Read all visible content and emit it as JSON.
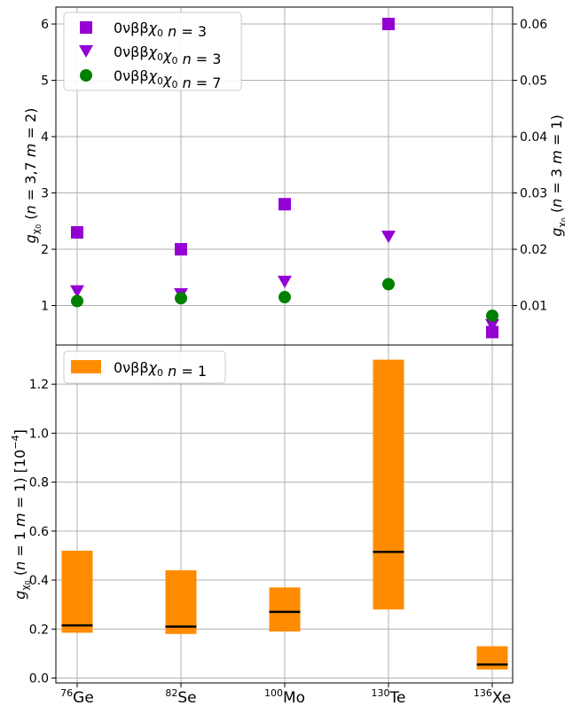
{
  "chart_data": [
    {
      "type": "scatter",
      "categories": [
        "76Ge",
        "82Se",
        "100Mo",
        "130Te",
        "136Xe"
      ],
      "ylabel": "g_χ0 (n = 3,7 m = 2)",
      "y2label": "g_χ0 (n = 3 m = 1)",
      "ylim": [
        0.3,
        6.3
      ],
      "y2lim": [
        0.003,
        0.063
      ],
      "yticks": [
        "1",
        "2",
        "3",
        "4",
        "5",
        "6"
      ],
      "y2ticks": [
        "0.01",
        "0.02",
        "0.03",
        "0.04",
        "0.05",
        "0.06"
      ],
      "grid": true,
      "legend_position": "top-left",
      "series": [
        {
          "name": "0νββχ0 n = 3",
          "marker": "square",
          "color": "#9400d3",
          "axis": "right",
          "values": [
            0.023,
            0.02,
            0.028,
            0.06,
            0.0053
          ]
        },
        {
          "name": "0νββχ0χ0 n = 3",
          "marker": "triangle-down",
          "color": "#9400d3",
          "axis": "left",
          "values": [
            1.25,
            1.2,
            1.42,
            2.22,
            0.65
          ]
        },
        {
          "name": "0νββχ0χ0 n = 7",
          "marker": "circle",
          "color": "#008000",
          "axis": "left",
          "values": [
            1.08,
            1.13,
            1.15,
            1.38,
            0.82
          ]
        }
      ]
    },
    {
      "type": "bar",
      "categories": [
        "76Ge",
        "82Se",
        "100Mo",
        "130Te",
        "136Xe"
      ],
      "ylabel": "g_χ0 (n = 1 m = 1) [10^-4]",
      "ylim": [
        -0.02,
        1.36
      ],
      "yticks": [
        "0.0",
        "0.2",
        "0.4",
        "0.6",
        "0.8",
        "1.0",
        "1.2"
      ],
      "grid": true,
      "legend_position": "top-left",
      "series": [
        {
          "name": "0νββχ0 n = 1",
          "color": "#ff8c00",
          "low": [
            0.185,
            0.18,
            0.19,
            0.28,
            0.035
          ],
          "high": [
            0.52,
            0.44,
            0.37,
            1.3,
            0.13
          ],
          "central": [
            0.215,
            0.21,
            0.27,
            0.515,
            0.055
          ]
        }
      ]
    }
  ],
  "x_tick_labels": [
    {
      "sup": "76",
      "sym": "Ge"
    },
    {
      "sup": "82",
      "sym": "Se"
    },
    {
      "sup": "100",
      "sym": "Mo"
    },
    {
      "sup": "130",
      "sym": "Te"
    },
    {
      "sup": "136",
      "sym": "Xe"
    }
  ]
}
